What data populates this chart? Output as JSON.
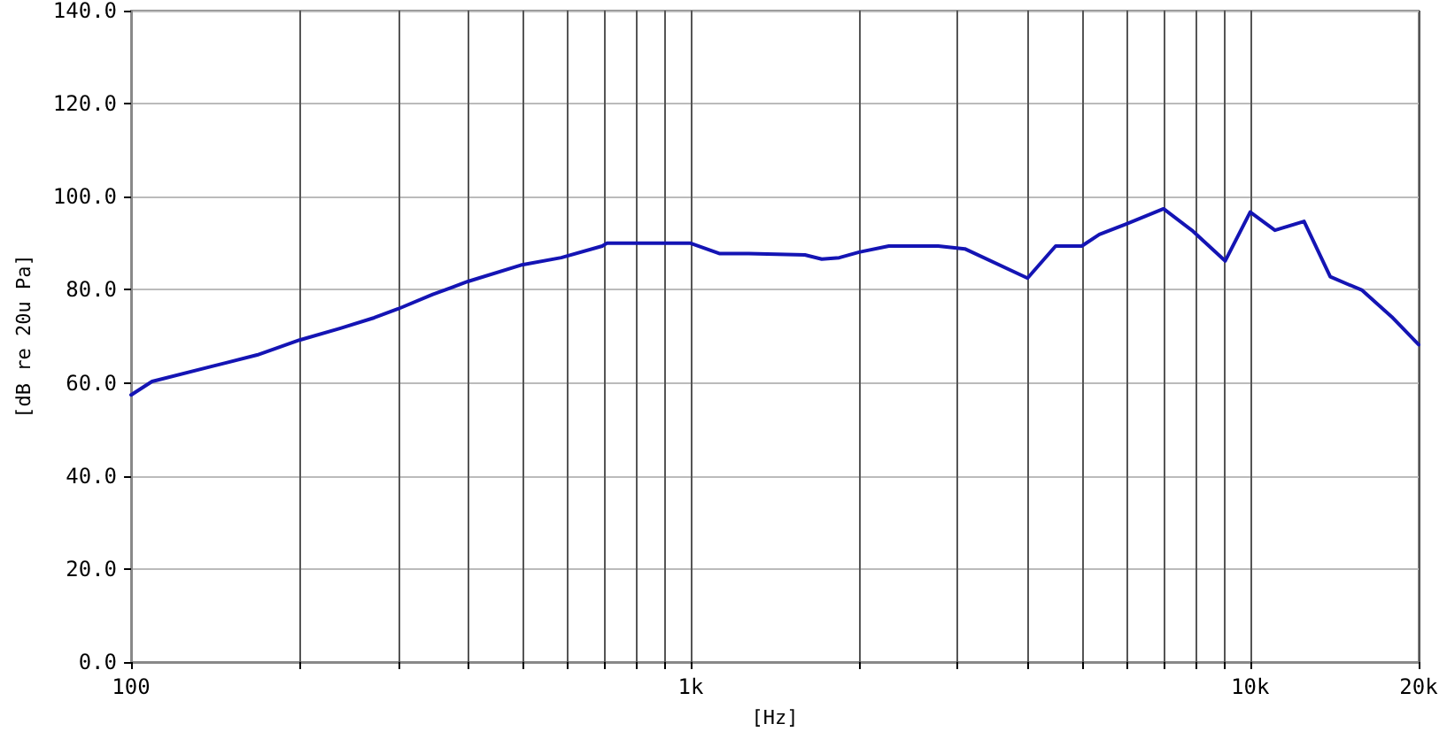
{
  "chart_data": {
    "type": "line",
    "xlabel": "[Hz]",
    "ylabel": "[dB re 20u Pa]",
    "log": "x",
    "grid": true,
    "marker": "none",
    "line_style": "solid",
    "xlim": [
      100,
      20000
    ],
    "ylim": [
      0,
      140
    ],
    "xticks": [
      {
        "value": 100,
        "label": "100"
      },
      {
        "value": 200,
        "label": null
      },
      {
        "value": 300,
        "label": null
      },
      {
        "value": 400,
        "label": null
      },
      {
        "value": 500,
        "label": null
      },
      {
        "value": 600,
        "label": null
      },
      {
        "value": 700,
        "label": null
      },
      {
        "value": 800,
        "label": null
      },
      {
        "value": 900,
        "label": null
      },
      {
        "value": 1000,
        "label": "1k"
      },
      {
        "value": 2000,
        "label": null
      },
      {
        "value": 3000,
        "label": null
      },
      {
        "value": 4000,
        "label": null
      },
      {
        "value": 5000,
        "label": null
      },
      {
        "value": 6000,
        "label": null
      },
      {
        "value": 7000,
        "label": null
      },
      {
        "value": 8000,
        "label": null
      },
      {
        "value": 9000,
        "label": null
      },
      {
        "value": 10000,
        "label": "10k"
      },
      {
        "value": 20000,
        "label": "20k"
      }
    ],
    "yticks": [
      {
        "value": 0,
        "label": "0.0"
      },
      {
        "value": 20,
        "label": "20.0"
      },
      {
        "value": 40,
        "label": "40.0"
      },
      {
        "value": 60,
        "label": "60.0"
      },
      {
        "value": 80,
        "label": "80.0"
      },
      {
        "value": 100,
        "label": "100.0"
      },
      {
        "value": 120,
        "label": "120.0"
      },
      {
        "value": 140,
        "label": "140.0"
      }
    ],
    "series": [
      {
        "color": "#1414b4",
        "x": [
          100,
          109,
          139,
          168,
          200,
          236,
          272,
          300,
          346,
          400,
          497,
          587,
          695,
          708,
          1000,
          1125,
          1270,
          1600,
          1715,
          1843,
          2000,
          2260,
          2770,
          3090,
          4000,
          4490,
          5000,
          5375,
          5990,
          7000,
          7900,
          9020,
          10000,
          11070,
          12480,
          13900,
          15850,
          17900,
          20000
        ],
        "values": [
          57.4,
          60.3,
          63.5,
          66.0,
          69.2,
          71.7,
          74.0,
          75.9,
          79.0,
          81.8,
          85.3,
          86.9,
          89.4,
          90.0,
          90.0,
          87.8,
          87.8,
          87.5,
          86.6,
          86.9,
          88.1,
          89.4,
          89.4,
          88.8,
          82.5,
          89.4,
          89.4,
          91.9,
          94.1,
          97.4,
          92.6,
          86.2,
          96.7,
          92.8,
          94.7,
          82.8,
          79.9,
          74.2,
          68.2
        ]
      }
    ]
  }
}
